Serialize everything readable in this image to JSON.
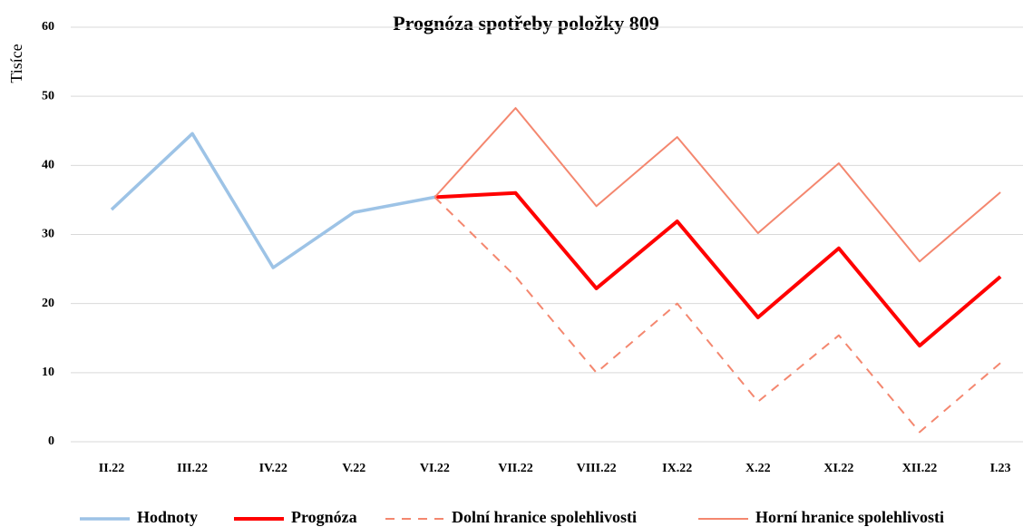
{
  "chart_data": {
    "type": "line",
    "title": "Prognóza spotřeby položky 809",
    "ylabel": "Tisíce",
    "categories": [
      "II.22",
      "III.22",
      "IV.22",
      "V.22",
      "VI.22",
      "VII.22",
      "VIII.22",
      "IX.22",
      "X.22",
      "XI.22",
      "XII.22",
      "I.23"
    ],
    "series": [
      {
        "name": "Hodnoty",
        "color": "#9dc3e6",
        "values": [
          33.6,
          44.6,
          25.2,
          33.2,
          35.4,
          null,
          null,
          null,
          null,
          null,
          null,
          null
        ]
      },
      {
        "name": "Prognóza",
        "color": "#ff0000",
        "values": [
          null,
          null,
          null,
          null,
          35.4,
          36.0,
          22.2,
          31.9,
          18.0,
          28.0,
          13.9,
          23.9
        ]
      },
      {
        "name": "Dolní hranice spolehlivosti",
        "color": "#f4876f",
        "dashed": true,
        "values": [
          null,
          null,
          null,
          null,
          35.4,
          23.9,
          10.0,
          20.0,
          5.8,
          15.4,
          1.4,
          11.4
        ]
      },
      {
        "name": "Horní hranice spolehlivosti",
        "color": "#f4876f",
        "values": [
          null,
          null,
          null,
          null,
          35.4,
          48.3,
          34.1,
          44.1,
          30.2,
          40.3,
          26.1,
          36.1
        ]
      }
    ],
    "ylim": [
      0,
      60
    ],
    "yticks": [
      0,
      10,
      20,
      30,
      40,
      50,
      60
    ],
    "grid": true,
    "legend": "bottom"
  }
}
